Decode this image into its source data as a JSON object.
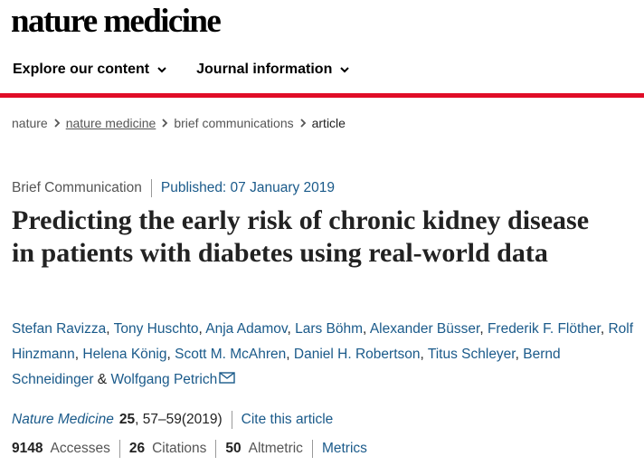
{
  "brand": "nature medicine",
  "nav": {
    "items": [
      {
        "label": "Explore our content"
      },
      {
        "label": "Journal information"
      }
    ]
  },
  "breadcrumb": {
    "items": [
      "nature",
      "nature medicine",
      "brief communications",
      "article"
    ]
  },
  "article": {
    "type": "Brief Communication",
    "published": "Published: 07 January 2019",
    "title": "Predicting the early risk of chronic kidney disease in patients with diabetes using real-world data",
    "authors": [
      "Stefan Ravizza",
      "Tony Huschto",
      "Anja Adamov",
      "Lars Böhm",
      "Alexander Büsser",
      "Frederik F. Flöther",
      "Rolf Hinzmann",
      "Helena König",
      "Scott M. McAhren",
      "Daniel H. Robertson",
      "Titus Schleyer",
      "Bernd Schneidinger",
      "Wolfgang Petrich"
    ],
    "author_sep": ", ",
    "author_last_sep": " & ",
    "journal": "Nature Medicine",
    "volume": "25",
    "pages": ", 57–59(2019)",
    "cite_label": "Cite this article"
  },
  "metrics": {
    "accesses_value": "9148",
    "accesses_label": "Accesses",
    "citations_value": "26",
    "citations_label": "Citations",
    "altmetric_value": "50",
    "altmetric_label": "Altmetric",
    "metrics_link": "Metrics"
  },
  "colors": {
    "accent_red": "#e00d27",
    "link_blue": "#1a5a8a"
  }
}
